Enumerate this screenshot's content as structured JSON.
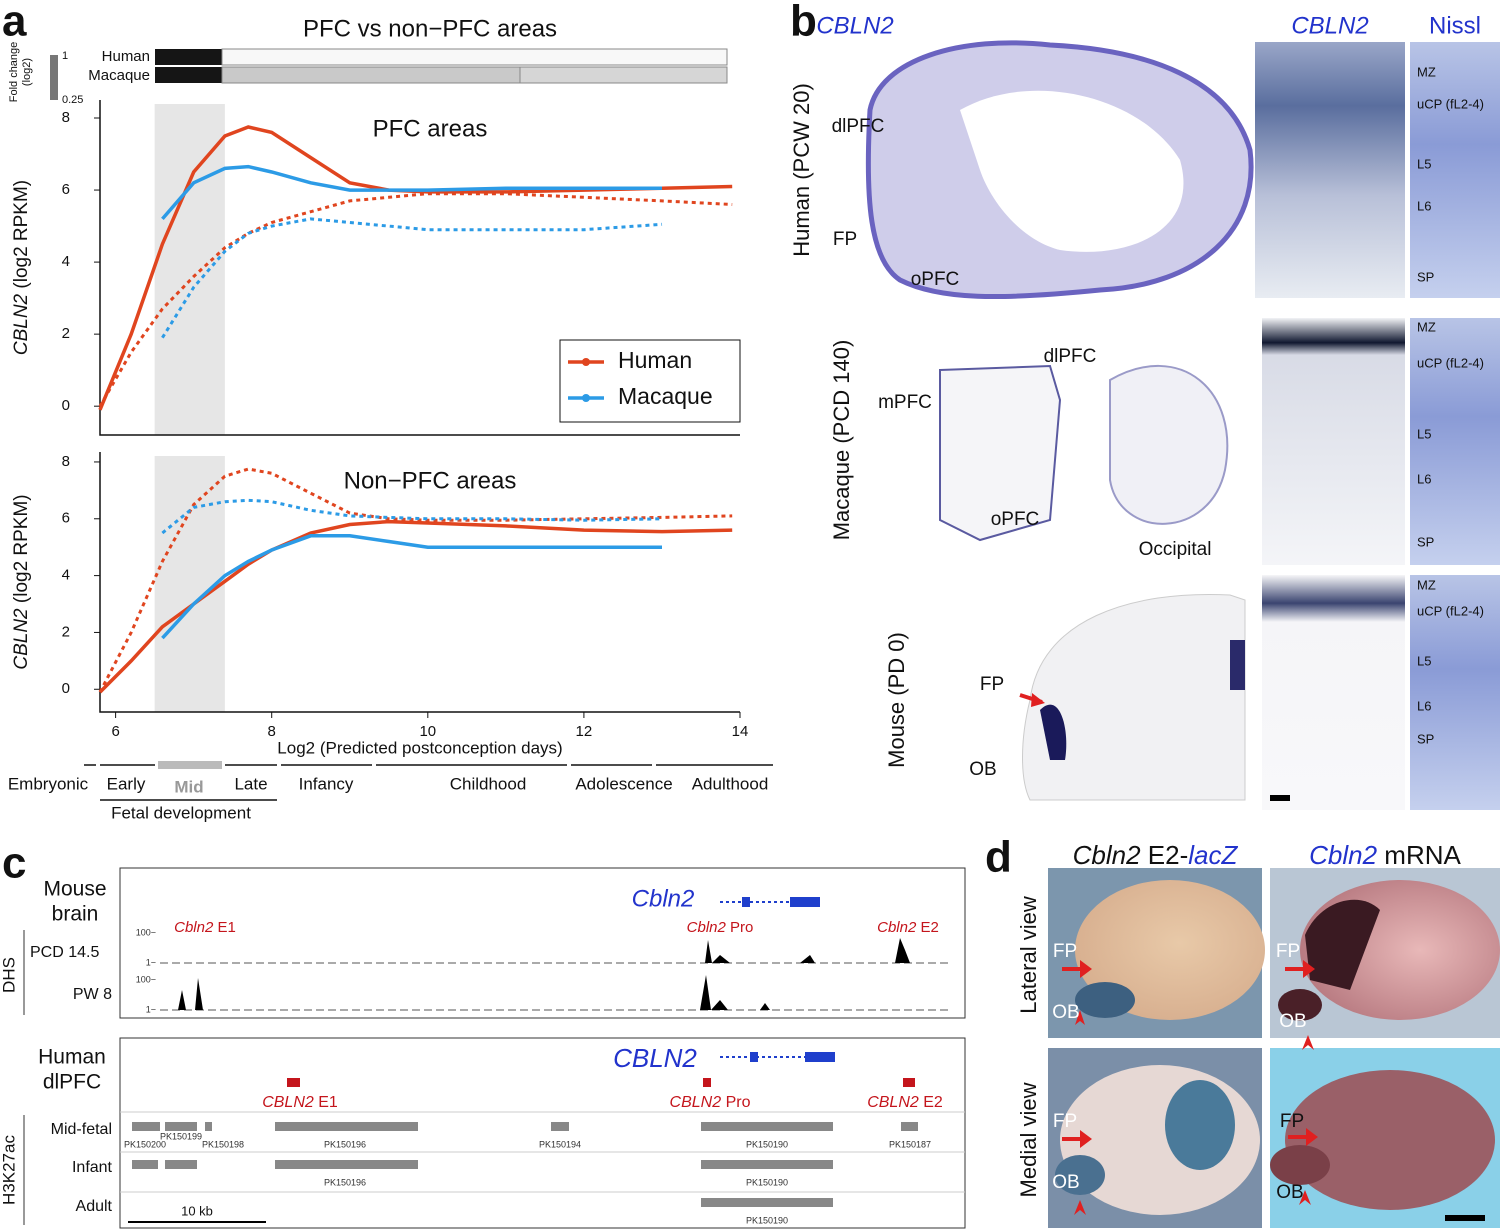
{
  "panel_labels": [
    "a",
    "b",
    "c",
    "d"
  ],
  "panel_a": {
    "title": "PFC vs non−PFC areas",
    "heatmap_rows": [
      "Human",
      "Macaque"
    ],
    "fold_change_label": [
      "Fold change",
      "(log2)"
    ],
    "fold_change_ticks": [
      1,
      0.25
    ],
    "stages": [
      "Embryonic",
      "Early",
      "Mid",
      "Late",
      "Infancy",
      "Childhood",
      "Adolescence",
      "Adulthood"
    ],
    "fetal_group": "Fetal development"
  },
  "chart_data": [
    {
      "type": "line",
      "title": "PFC areas",
      "ylabel_gene": "CBLN2",
      "ylabel": "(log2 RPKM)",
      "x": [
        5.8,
        6.2,
        6.6,
        7.0,
        7.4,
        7.7,
        8.0,
        8.5,
        9.0,
        9.5,
        10,
        11,
        12,
        13,
        13.9
      ],
      "xlim": [
        5.8,
        14.0
      ],
      "ylim": [
        -0.8,
        8.5
      ],
      "yticks": [
        0,
        2,
        4,
        6,
        8
      ],
      "highlight": [
        6.5,
        7.4
      ],
      "legend": "right",
      "series": [
        {
          "name": "Human",
          "color": "#e0451f",
          "values": [
            -0.1,
            2.0,
            4.5,
            6.5,
            7.5,
            7.75,
            7.6,
            6.9,
            6.2,
            6.0,
            5.95,
            5.95,
            6.0,
            6.05,
            6.1
          ]
        },
        {
          "name": "Macaque",
          "color": "#2c9be6",
          "values": [
            null,
            null,
            5.2,
            6.2,
            6.6,
            6.65,
            6.5,
            6.2,
            6.0,
            6.0,
            6.0,
            6.05,
            6.05,
            6.05,
            null
          ]
        },
        {
          "name": "Human",
          "color": "#e0451f",
          "dash": true,
          "values": [
            0.0,
            1.5,
            2.7,
            3.6,
            4.4,
            4.8,
            5.1,
            5.4,
            5.7,
            5.8,
            5.9,
            5.9,
            5.8,
            5.7,
            5.6
          ]
        },
        {
          "name": "Macaque",
          "color": "#2c9be6",
          "dash": true,
          "values": [
            null,
            null,
            1.9,
            3.3,
            4.3,
            4.8,
            5.0,
            5.2,
            5.1,
            5.0,
            4.9,
            4.9,
            4.9,
            5.05,
            null
          ]
        }
      ]
    },
    {
      "type": "line",
      "title": "Non−PFC areas",
      "ylabel_gene": "CBLN2",
      "ylabel": "(log2 RPKM)",
      "xlabel": "Log2 (Predicted postconception days)",
      "x": [
        5.8,
        6.2,
        6.6,
        7.0,
        7.4,
        7.7,
        8.0,
        8.5,
        9.0,
        9.5,
        10,
        11,
        12,
        13,
        13.9
      ],
      "xlim": [
        5.8,
        14.0
      ],
      "xticks": [
        6,
        8,
        10,
        12,
        14
      ],
      "ylim": [
        -0.8,
        8.35
      ],
      "yticks": [
        0,
        2,
        4,
        6,
        8
      ],
      "highlight": [
        6.5,
        7.4
      ],
      "series": [
        {
          "name": "Human",
          "color": "#e0451f",
          "values": [
            -0.1,
            1.0,
            2.2,
            3.0,
            3.8,
            4.4,
            4.9,
            5.5,
            5.8,
            5.9,
            5.85,
            5.75,
            5.6,
            5.55,
            5.6
          ]
        },
        {
          "name": "Macaque",
          "color": "#2c9be6",
          "values": [
            null,
            null,
            1.8,
            3.0,
            4.0,
            4.5,
            4.9,
            5.4,
            5.4,
            5.2,
            5.0,
            5.0,
            5.0,
            5.0,
            null
          ]
        },
        {
          "name": "Human",
          "color": "#e0451f",
          "dash": true,
          "values": [
            -0.1,
            2.0,
            4.5,
            6.5,
            7.5,
            7.75,
            7.6,
            6.9,
            6.2,
            6.0,
            5.95,
            5.95,
            6.0,
            6.05,
            6.1
          ]
        },
        {
          "name": "Macaque",
          "color": "#2c9be6",
          "dash": true,
          "values": [
            null,
            null,
            5.5,
            6.4,
            6.6,
            6.65,
            6.6,
            6.3,
            6.1,
            6.05,
            6.0,
            6.0,
            5.95,
            6.0,
            null
          ]
        }
      ]
    }
  ],
  "panel_b": {
    "column_titles": [
      "CBLN2",
      "CBLN2",
      "Nissl"
    ],
    "rows": [
      "Human (PCW 20)",
      "Macaque (PCD 140)",
      "Mouse (PD 0)"
    ],
    "human_regions": [
      "dlPFC",
      "FP",
      "oPFC"
    ],
    "macaque_regions": [
      "mPFC",
      "dlPFC",
      "oPFC",
      "Occipital"
    ],
    "mouse_regions": [
      "FP",
      "OB"
    ],
    "layers": [
      [
        "MZ",
        "uCP (fL2-4)",
        "L5",
        "L6",
        "SP"
      ],
      [
        "MZ",
        "uCP (fL2-4)",
        "L5",
        "L6",
        "SP"
      ],
      [
        "MZ",
        "uCP (fL2-4)",
        "L5",
        "L6",
        "SP"
      ]
    ]
  },
  "panel_c": {
    "mouse_track": {
      "title": [
        "Mouse",
        "brain"
      ],
      "gene": "Cbln2",
      "elements": [
        {
          "gene": "Cbln2",
          "label": "E1"
        },
        {
          "gene": "Cbln2",
          "label": "Pro"
        },
        {
          "gene": "Cbln2",
          "label": "E2"
        }
      ],
      "assay": "DHS",
      "samples": [
        "PCD 14.5",
        "PW 8"
      ],
      "scale": [
        "100−",
        "1−",
        "100−",
        "1−"
      ]
    },
    "human_track": {
      "title": [
        "Human",
        "dlPFC"
      ],
      "gene": "CBLN2",
      "elements": [
        {
          "gene": "CBLN2",
          "label": "E1"
        },
        {
          "gene": "CBLN2",
          "label": "Pro"
        },
        {
          "gene": "CBLN2",
          "label": "E2"
        }
      ],
      "assay": "H3K27ac",
      "samples": [
        "Mid-fetal",
        "Infant",
        "Adult"
      ],
      "peaks": [
        [
          "PK150200",
          "PK150199",
          "PK150198",
          "PK150196",
          "PK150194",
          "PK150190",
          "PK150187"
        ],
        [
          "PK150196",
          "PK150190"
        ],
        [
          "PK150190"
        ]
      ],
      "scale_bar": "10 kb"
    }
  },
  "panel_d": {
    "column_titles": [
      {
        "gene": "Cbln2",
        "construct": "E2-",
        "reporter": "lacZ"
      },
      {
        "gene": "Cbln2",
        "construct": "mRNA"
      }
    ],
    "rows": [
      "Lateral view",
      "Medial view"
    ],
    "labels": [
      "FP",
      "OB",
      "FP",
      "OB",
      "FP",
      "OB",
      "FP",
      "OB"
    ]
  }
}
